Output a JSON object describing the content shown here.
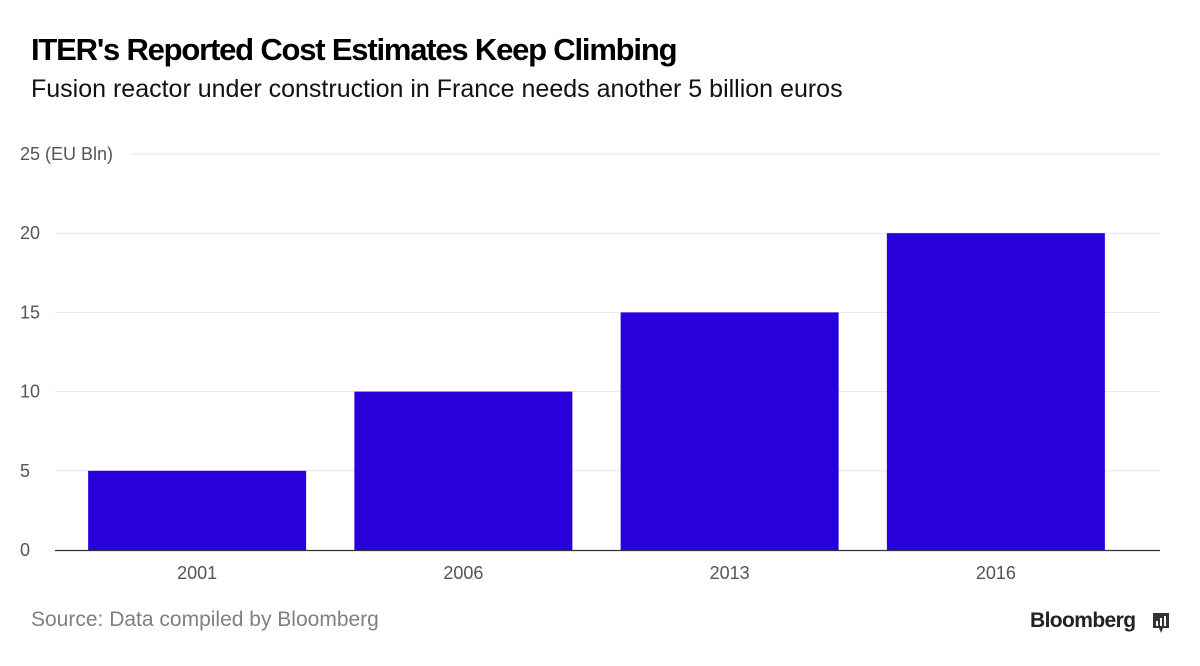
{
  "title": "ITER's Reported Cost Estimates Keep Climbing",
  "subtitle": "Fusion reactor under construction in France needs another 5 billion euros",
  "source": "Source: Data compiled by Bloomberg",
  "brand": "Bloomberg",
  "brand_icon": "bloomberg-chart-icon",
  "colors": {
    "bar": "#2A00DA",
    "grid": "#e6e6e6",
    "axis": "#333333",
    "tick_text": "#555555"
  },
  "chart_data": {
    "type": "bar",
    "title": "ITER's Reported Cost Estimates Keep Climbing",
    "categories": [
      "2001",
      "2006",
      "2013",
      "2016"
    ],
    "values": [
      5,
      10,
      15,
      20
    ],
    "ylim": [
      0,
      25
    ],
    "yticks": [
      0,
      5,
      10,
      15,
      20,
      25
    ],
    "ytick_labels": [
      "0",
      "5",
      "10",
      "15",
      "20",
      "25 (EU Bln)"
    ],
    "ylabel": "EU Bln",
    "xlabel": "",
    "grid": true
  }
}
